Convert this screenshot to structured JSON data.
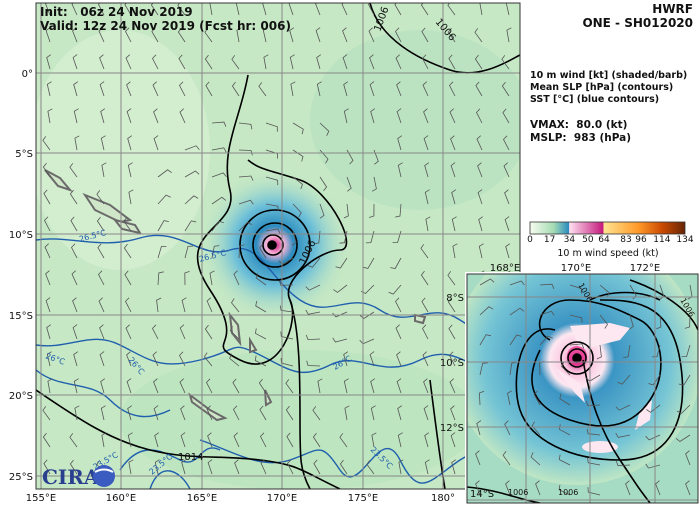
{
  "header": {
    "init": "Init:   06z 24 Nov 2019",
    "valid": "Valid: 12z 24 Nov 2019 (Fcst hr: 006)",
    "model": "HWRF",
    "storm": "ONE - SH012020"
  },
  "legend": {
    "line1": "10 m wind [kt] (shaded/barb)",
    "line2": "Mean SLP [hPa] (contours)",
    "line3": "SST [°C] (blue contours)",
    "vmax": "VMAX:  80.0 (kt)",
    "mslp": "MSLP:  983 (hPa)"
  },
  "colorbar": {
    "label": "10 m wind speed (kt)",
    "ticks": [
      "0",
      "17",
      "34",
      "50",
      "64",
      "83",
      "96",
      "114",
      "134"
    ],
    "colors": [
      "#f7fcf0",
      "#a8ddb5",
      "#2b8cbe",
      "#fde0ef",
      "#c51b7d",
      "#fee391",
      "#fe9929",
      "#cc4c02",
      "#662506"
    ]
  },
  "main_map": {
    "lon_labels": [
      "155°E",
      "160°E",
      "165°E",
      "170°E",
      "175°E",
      "180°"
    ],
    "lat_labels": [
      "0°",
      "5°S",
      "10°S",
      "15°S",
      "20°S",
      "25°S"
    ],
    "slp_labels": [
      "1006",
      "1006",
      "1006",
      "1014"
    ],
    "sst_labels": [
      "26.5°C",
      "26.5°C",
      "26°C",
      "26°C",
      "26°C",
      "23.5°C",
      "23.5°C",
      "23.5°C"
    ]
  },
  "inset_map": {
    "lon_labels": [
      "168°E",
      "170°E",
      "172°E"
    ],
    "lat_labels": [
      "8°S",
      "10°S",
      "12°S",
      "14°S"
    ],
    "slp_labels": [
      "1006",
      "1006",
      "1006",
      "1006"
    ]
  },
  "logo": "CIRA",
  "colors": {
    "storm_core": "#e7298a",
    "wind_blue": "#41a6c9",
    "land": "#7a7a7a",
    "sst": "#1f5fae"
  }
}
